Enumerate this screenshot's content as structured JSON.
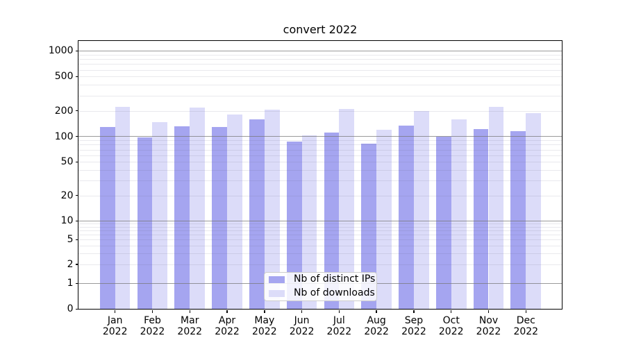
{
  "chart_data": {
    "type": "bar",
    "title": "convert 2022",
    "categories": [
      "Jan",
      "Feb",
      "Mar",
      "Apr",
      "May",
      "Jun",
      "Jul",
      "Aug",
      "Sep",
      "Oct",
      "Nov",
      "Dec"
    ],
    "category_year": "2022",
    "series": [
      {
        "name": "Nb of distinct IPs",
        "color": "#a5a5f0",
        "values": [
          128,
          97,
          132,
          128,
          158,
          87,
          112,
          82,
          135,
          100,
          123,
          116
        ]
      },
      {
        "name": "Nb of downloads",
        "color": "#dcdcf9",
        "values": [
          222,
          148,
          218,
          182,
          205,
          104,
          208,
          120,
          198,
          160,
          221,
          186
        ]
      }
    ],
    "yscale": "symlog",
    "ylim": [
      0,
      1300
    ],
    "yticks": [
      0,
      1,
      2,
      5,
      10,
      20,
      50,
      100,
      200,
      500,
      1000
    ],
    "grid": "on",
    "legend_position": "lower center"
  },
  "colors": {
    "background": "#ffffff",
    "spine": "#000000",
    "major_grid": "#b0b0b0",
    "minor_grid": "#e8e8ee",
    "ips_bar": "#a5a5f0",
    "downloads_bar": "#dcdcf9"
  }
}
